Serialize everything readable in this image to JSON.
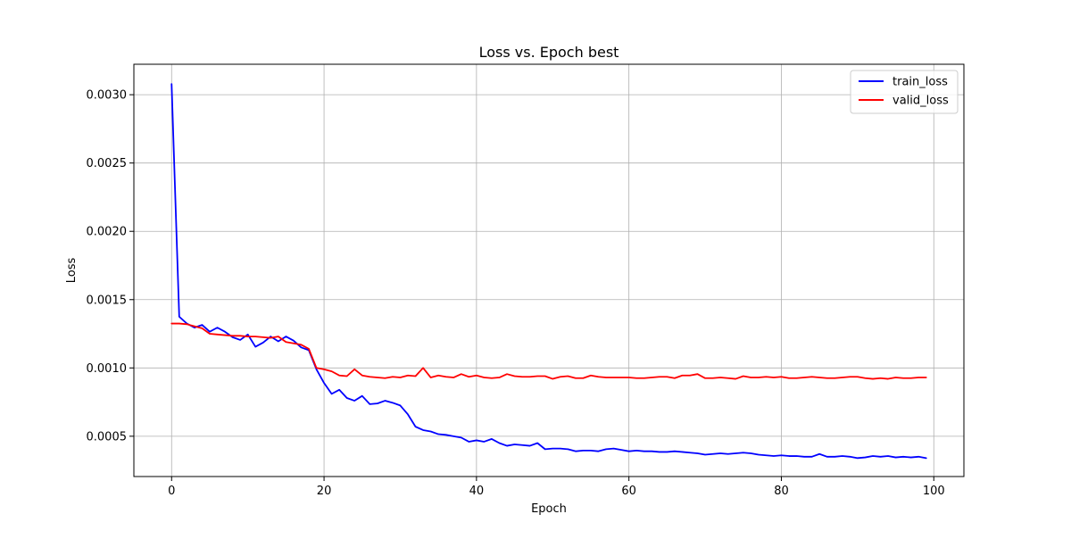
{
  "chart_data": {
    "type": "line",
    "title": "Loss vs. Epoch best",
    "xlabel": "Epoch",
    "ylabel": "Loss",
    "xlim": [
      -4.95,
      103.95
    ],
    "ylim": [
      0.000205,
      0.003223
    ],
    "xticks": [
      0,
      20,
      40,
      60,
      80,
      100
    ],
    "xtick_labels": [
      "0",
      "20",
      "40",
      "60",
      "80",
      "100"
    ],
    "yticks": [
      0.0005,
      0.001,
      0.0015,
      0.002,
      0.0025,
      0.003
    ],
    "ytick_labels": [
      "0.0005",
      "0.0010",
      "0.0015",
      "0.0020",
      "0.0025",
      "0.0030"
    ],
    "grid": true,
    "legend_position": "top-right",
    "x": [
      0,
      1,
      2,
      3,
      4,
      5,
      6,
      7,
      8,
      9,
      10,
      11,
      12,
      13,
      14,
      15,
      16,
      17,
      18,
      19,
      20,
      21,
      22,
      23,
      24,
      25,
      26,
      27,
      28,
      29,
      30,
      31,
      32,
      33,
      34,
      35,
      36,
      37,
      38,
      39,
      40,
      41,
      42,
      43,
      44,
      45,
      46,
      47,
      48,
      49,
      50,
      51,
      52,
      53,
      54,
      55,
      56,
      57,
      58,
      59,
      60,
      61,
      62,
      63,
      64,
      65,
      66,
      67,
      68,
      69,
      70,
      71,
      72,
      73,
      74,
      75,
      76,
      77,
      78,
      79,
      80,
      81,
      82,
      83,
      84,
      85,
      86,
      87,
      88,
      89,
      90,
      91,
      92,
      93,
      94,
      95,
      96,
      97,
      98,
      99
    ],
    "series": [
      {
        "name": "train_loss",
        "color": "#0000ff",
        "values": [
          0.003078,
          0.001375,
          0.001325,
          0.001295,
          0.001315,
          0.001265,
          0.001295,
          0.001265,
          0.001225,
          0.001205,
          0.001245,
          0.001155,
          0.001185,
          0.00123,
          0.001195,
          0.00123,
          0.0012,
          0.00115,
          0.00113,
          0.00099,
          0.00089,
          0.00081,
          0.00084,
          0.00078,
          0.00076,
          0.000795,
          0.000735,
          0.00074,
          0.00076,
          0.000745,
          0.000725,
          0.00066,
          0.00057,
          0.000545,
          0.000535,
          0.000515,
          0.00051,
          0.0005,
          0.00049,
          0.00046,
          0.00047,
          0.00046,
          0.00048,
          0.00045,
          0.00043,
          0.00044,
          0.000435,
          0.00043,
          0.00045,
          0.000405,
          0.00041,
          0.00041,
          0.000405,
          0.00039,
          0.000395,
          0.000395,
          0.00039,
          0.000405,
          0.00041,
          0.0004,
          0.00039,
          0.000395,
          0.00039,
          0.00039,
          0.000385,
          0.000385,
          0.00039,
          0.000385,
          0.00038,
          0.000375,
          0.000365,
          0.00037,
          0.000375,
          0.00037,
          0.000375,
          0.00038,
          0.000375,
          0.000365,
          0.00036,
          0.000355,
          0.00036,
          0.000355,
          0.000355,
          0.00035,
          0.00035,
          0.00037,
          0.00035,
          0.00035,
          0.000355,
          0.00035,
          0.00034,
          0.000345,
          0.000355,
          0.00035,
          0.000355,
          0.000345,
          0.00035,
          0.000345,
          0.00035,
          0.00034
        ]
      },
      {
        "name": "valid_loss",
        "color": "#ff0000",
        "values": [
          0.001325,
          0.001325,
          0.00132,
          0.001305,
          0.00129,
          0.00125,
          0.001245,
          0.00124,
          0.001235,
          0.001235,
          0.00123,
          0.00123,
          0.001225,
          0.00122,
          0.00123,
          0.00119,
          0.00118,
          0.00117,
          0.00114,
          0.001,
          0.00099,
          0.000975,
          0.000945,
          0.00094,
          0.00099,
          0.000945,
          0.000935,
          0.00093,
          0.000925,
          0.000935,
          0.00093,
          0.000945,
          0.00094,
          0.001,
          0.00093,
          0.000945,
          0.000935,
          0.00093,
          0.000955,
          0.000935,
          0.000945,
          0.00093,
          0.000925,
          0.00093,
          0.000955,
          0.00094,
          0.000935,
          0.000935,
          0.00094,
          0.00094,
          0.00092,
          0.000935,
          0.00094,
          0.000925,
          0.000925,
          0.000945,
          0.000935,
          0.00093,
          0.00093,
          0.00093,
          0.00093,
          0.000925,
          0.000925,
          0.00093,
          0.000935,
          0.000935,
          0.000925,
          0.000945,
          0.000945,
          0.000955,
          0.000925,
          0.000925,
          0.00093,
          0.000925,
          0.00092,
          0.00094,
          0.00093,
          0.00093,
          0.000935,
          0.00093,
          0.000935,
          0.000925,
          0.000925,
          0.00093,
          0.000935,
          0.00093,
          0.000925,
          0.000925,
          0.00093,
          0.000935,
          0.000935,
          0.000925,
          0.00092,
          0.000925,
          0.00092,
          0.00093,
          0.000925,
          0.000925,
          0.00093,
          0.00093
        ]
      }
    ]
  }
}
